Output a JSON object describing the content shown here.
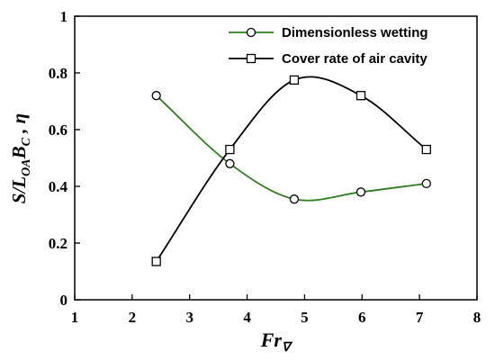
{
  "chart_data": {
    "type": "line",
    "xlabel": {
      "main": "Fr",
      "sub": "∇"
    },
    "ylabel": {
      "parts": [
        "S/L",
        "OA",
        "B",
        "C",
        " , η"
      ]
    },
    "xlim": [
      1,
      8
    ],
    "ylim": [
      0,
      1
    ],
    "xticks": [
      "1",
      "2",
      "3",
      "4",
      "5",
      "6",
      "7",
      "8"
    ],
    "yticks": [
      "0",
      "0.2",
      "0.4",
      "0.6",
      "0.8",
      "1"
    ],
    "smooth": true,
    "grid": false,
    "legend_position": "top-right",
    "series": [
      {
        "name": "Dimensionless wetting",
        "color": "#2e7d1e",
        "marker": "circle",
        "x": [
          2.42,
          3.7,
          4.82,
          5.98,
          7.12
        ],
        "y": [
          0.72,
          0.48,
          0.355,
          0.38,
          0.41
        ]
      },
      {
        "name": "Cover rate of air cavity",
        "color": "#000000",
        "marker": "square",
        "x": [
          2.42,
          3.7,
          4.82,
          5.98,
          7.12
        ],
        "y": [
          0.135,
          0.53,
          0.775,
          0.72,
          0.53
        ]
      }
    ]
  }
}
